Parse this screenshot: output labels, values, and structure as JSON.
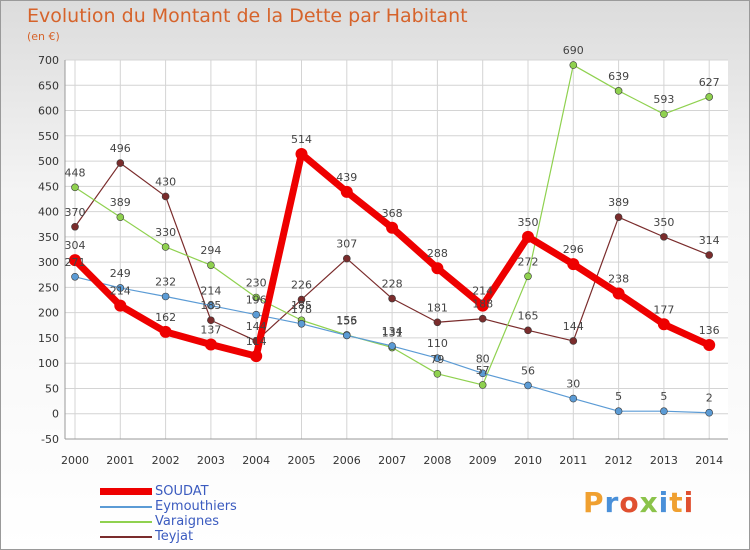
{
  "title": "Evolution du Montant de la Dette par Habitant",
  "subtitle": "(en €)",
  "logo": "Proxiti",
  "colors": {
    "title": "#d6632b",
    "grid": "#d4d4d4",
    "axis": "#999999",
    "legend_text": "#3b5bbf"
  },
  "chart_data": {
    "type": "line",
    "title": "Evolution du Montant de la Dette par Habitant",
    "ylabel": "(en €)",
    "xlabel": "",
    "x": [
      "2000",
      "2001",
      "2002",
      "2003",
      "2004",
      "2005",
      "2006",
      "2007",
      "2008",
      "2009",
      "2010",
      "2011",
      "2012",
      "2013",
      "2014"
    ],
    "ylim": [
      -50,
      700
    ],
    "yticks": [
      -50,
      0,
      50,
      100,
      150,
      200,
      250,
      300,
      350,
      400,
      450,
      500,
      550,
      600,
      650,
      700
    ],
    "grid": true,
    "legend_position": "bottom-left",
    "series": [
      {
        "name": "SOUDAT",
        "color": "#ee0000",
        "width": 7,
        "marker": 6,
        "values": [
          304,
          214,
          162,
          137,
          114,
          514,
          439,
          368,
          288,
          214,
          350,
          296,
          238,
          177,
          136
        ],
        "labels": [
          "304",
          "214",
          "162",
          "137",
          "114",
          "514",
          "439",
          "368",
          "288",
          "214",
          "350",
          "296",
          "238",
          "177",
          "136"
        ]
      },
      {
        "name": "Eymouthiers",
        "color": "#5b9bd5",
        "width": 1.2,
        "marker": 3.5,
        "values": [
          271,
          249,
          232,
          214,
          196,
          178,
          155,
          134,
          110,
          80,
          56,
          30,
          5,
          5,
          2
        ],
        "labels": [
          "271",
          "249",
          "232",
          "214",
          "196",
          "178",
          "155",
          "134",
          "110",
          "80",
          "56",
          "30",
          "5",
          "5",
          "2"
        ]
      },
      {
        "name": "Varaignes",
        "color": "#8fd14f",
        "width": 1.2,
        "marker": 3.5,
        "values": [
          448,
          389,
          330,
          294,
          230,
          185,
          156,
          131,
          79,
          57,
          272,
          690,
          639,
          593,
          627
        ],
        "labels": [
          "448",
          "389",
          "330",
          "294",
          "230",
          "185",
          "156",
          "131",
          "79",
          "57",
          "272",
          "690",
          "639",
          "593",
          "627"
        ]
      },
      {
        "name": "Teyjat",
        "color": "#7a2c2c",
        "width": 1.2,
        "marker": 3.5,
        "values": [
          370,
          496,
          430,
          185,
          144,
          226,
          307,
          228,
          181,
          188,
          165,
          144,
          389,
          350,
          314
        ],
        "labels": [
          "370",
          "496",
          "430",
          "185",
          "144",
          "226",
          "307",
          "228",
          "181",
          "188",
          "165",
          "144",
          "389",
          "350",
          "314"
        ]
      }
    ]
  }
}
